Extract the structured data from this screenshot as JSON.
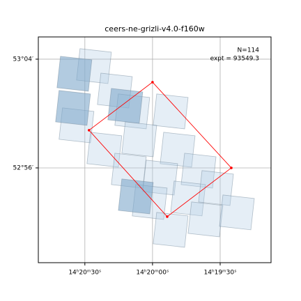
{
  "chart_data": {
    "type": "footprint",
    "title": "ceers-ne-grizli-v4.0-f160w",
    "annotations": [
      "N=114",
      "expt = 93549.3"
    ],
    "xlim": [
      215.211,
      214.781
    ],
    "ylim": [
      52.817,
      53.094
    ],
    "xticks": [
      {
        "value": 215.125,
        "label": "14ʰ20ᵐ30ˢ"
      },
      {
        "value": 215.0,
        "label": "14ʰ20ᵐ00ˢ"
      },
      {
        "value": 214.875,
        "label": "14ʰ19ᵐ30ˢ"
      }
    ],
    "yticks": [
      {
        "value": 53.0667,
        "label": "53°04′"
      },
      {
        "value": 52.9333,
        "label": "52°56′"
      }
    ],
    "grid": true,
    "footprint_offsets": {
      "x": [
        -0.0322,
        -0.0258,
        0.0322,
        0.0258
      ],
      "y": [
        0.0171,
        -0.0214,
        -0.0171,
        0.0214
      ]
    },
    "tiles": {
      "color": "#b4cfe4",
      "x": [
        215.1082,
        215.0696,
        215.1405,
        215.0889,
        215.0374,
        214.9665,
        214.9536,
        215.0438,
        214.9858,
        214.9149,
        215.0052,
        214.9343,
        214.8827,
        214.9665,
        214.9021,
        214.8441,
        215.0245
      ],
      "y": [
        53.0582,
        53.0282,
        52.9855,
        52.9556,
        53.0026,
        53.0026,
        52.9556,
        52.9299,
        52.9214,
        52.9299,
        52.8915,
        52.8958,
        52.9086,
        52.8573,
        52.8701,
        52.8787,
        52.9684
      ]
    },
    "highlight_tiles": {
      "color": "#7fa9cc",
      "x": [
        215.1443,
        215.1469,
        215.0503,
        215.0309
      ],
      "y": [
        53.0488,
        53.0069,
        53.0094,
        52.8983
      ]
    },
    "region": {
      "color": "#ff0000",
      "x": [
        215.0,
        214.8544,
        214.9729,
        215.1173
      ],
      "y": [
        53.0385,
        52.9333,
        52.8735,
        52.9795
      ]
    }
  }
}
